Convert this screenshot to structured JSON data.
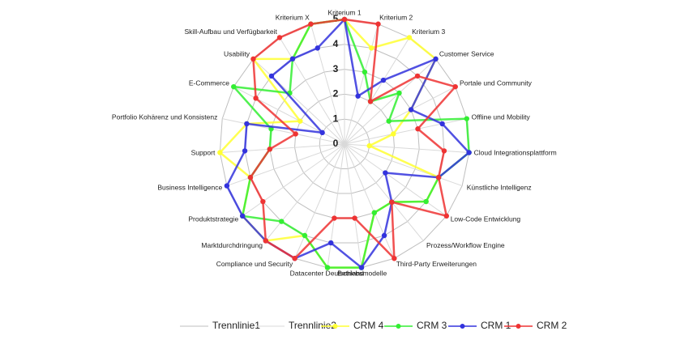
{
  "chart_data": {
    "type": "radar",
    "categories": [
      "Kriterium 1",
      "Kriterium 2",
      "Kriterium 3",
      "Customer Service",
      "Portale und Community",
      "Offline und Mobility",
      "Cloud Integrationsplattform",
      "Künstliche Intelligenz",
      "Low-Code Entwicklung",
      "Prozess/Workflow Engine",
      "Third-Party Erweiterungen",
      "Betriebsmodelle",
      "Datacenter Deutschland",
      "Compliance und Security",
      "Marktdurchdringung",
      "Produktstrategie",
      "Business Intelligence",
      "Support",
      "Portfolio Kohärenz und Konsistenz",
      "E-Commerce",
      "Usability",
      "Skill-Aufbau und Verfügbarkeit",
      "Kriterium X"
    ],
    "ylim": [
      0,
      5
    ],
    "yticks": [
      0,
      1,
      2,
      3,
      4,
      5
    ],
    "grid": true,
    "legend": "bottom",
    "series": [
      {
        "name": "Trennlinie1",
        "color": "#bfbfbf"
      },
      {
        "name": "Trennlinie2",
        "color": "#d9d9d9"
      },
      {
        "name": "CRM 4",
        "color": "#ffff33",
        "values": [
          5,
          4,
          5,
          5,
          3,
          2,
          1,
          4,
          4,
          3,
          3,
          5,
          5,
          4,
          5,
          5,
          4,
          5,
          4,
          2,
          5,
          4,
          5
        ]
      },
      {
        "name": "CRM 3",
        "color": "#33ee33",
        "values": [
          5,
          3,
          2,
          3,
          2,
          5,
          5,
          4,
          4,
          3,
          3,
          5,
          5,
          4,
          4,
          5,
          4,
          3,
          3,
          5,
          3,
          4,
          5
        ]
      },
      {
        "name": "CRM 1",
        "color": "#3333dd",
        "values": [
          5,
          2,
          3,
          5,
          3,
          4,
          5,
          4,
          2,
          3,
          4,
          5,
          4,
          5,
          5,
          5,
          5,
          4,
          4,
          1,
          4,
          4,
          4
        ]
      },
      {
        "name": "CRM 2",
        "color": "#ee3333",
        "values": [
          5,
          5,
          2,
          4,
          5,
          3,
          4,
          4,
          5,
          3,
          5,
          3,
          3,
          5,
          5,
          4,
          4,
          3,
          2,
          4,
          5,
          5,
          5
        ]
      }
    ]
  }
}
